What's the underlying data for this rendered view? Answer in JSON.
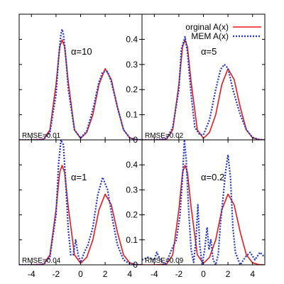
{
  "legend": {
    "position": "top-right",
    "entries": [
      "orginal A(x)",
      "MEM A(x)"
    ]
  },
  "colors": {
    "original": "#e8191d",
    "mem": "#1f35c8",
    "frame": "#000000"
  },
  "axes": {
    "x": {
      "lim": [
        -5,
        5
      ],
      "ticks": [
        -4,
        -2,
        0,
        2,
        4
      ]
    },
    "y": {
      "lim": [
        0,
        0.5
      ],
      "ticks": [
        0,
        0.1,
        0.2,
        0.3,
        0.4
      ]
    }
  },
  "chart_data": [
    {
      "type": "line",
      "panel": "top-left",
      "alpha_label": "α=10",
      "rmse_label": "RMSE=0.01",
      "xlim": [
        -5,
        5
      ],
      "ylim": [
        0,
        0.5
      ],
      "grid": false,
      "series": [
        {
          "name": "orginal A(x)",
          "style": "solid",
          "x": [
            -5,
            -4,
            -3,
            -2.5,
            -2,
            -1.7,
            -1.5,
            -1.3,
            -1,
            -0.5,
            0,
            0.5,
            1,
            1.5,
            2,
            2.5,
            3,
            3.5,
            4,
            4.5,
            5
          ],
          "y": [
            0,
            0,
            0.003,
            0.04,
            0.22,
            0.37,
            0.398,
            0.37,
            0.23,
            0.04,
            0.006,
            0.03,
            0.1,
            0.22,
            0.283,
            0.24,
            0.13,
            0.04,
            0.008,
            0.001,
            0
          ]
        },
        {
          "name": "MEM A(x)",
          "style": "dotted",
          "x": [
            -5,
            -4,
            -3,
            -2.5,
            -2,
            -1.8,
            -1.6,
            -1.5,
            -1.4,
            -1.2,
            -1,
            -0.5,
            0,
            0.5,
            1,
            1.5,
            1.8,
            2.2,
            2.5,
            3,
            3.5,
            4,
            4.5,
            5
          ],
          "y": [
            0,
            0,
            0.002,
            0.03,
            0.18,
            0.32,
            0.42,
            0.44,
            0.42,
            0.33,
            0.2,
            0.04,
            0.007,
            0.035,
            0.12,
            0.23,
            0.27,
            0.272,
            0.23,
            0.13,
            0.04,
            0.008,
            0.001,
            0
          ]
        }
      ]
    },
    {
      "type": "line",
      "panel": "top-right",
      "alpha_label": "α=5",
      "rmse_label": "RMSE=0.02",
      "xlim": [
        -5,
        5
      ],
      "ylim": [
        0,
        0.5
      ],
      "grid": false,
      "series": [
        {
          "name": "orginal A(x)",
          "style": "solid",
          "x": [
            -5,
            -4,
            -3,
            -2.5,
            -2,
            -1.7,
            -1.5,
            -1.3,
            -1,
            -0.5,
            0,
            0.5,
            1,
            1.5,
            2,
            2.5,
            3,
            3.5,
            4,
            4.5,
            5
          ],
          "y": [
            0,
            0,
            0.003,
            0.04,
            0.22,
            0.37,
            0.398,
            0.37,
            0.23,
            0.04,
            0.006,
            0.03,
            0.1,
            0.22,
            0.283,
            0.24,
            0.13,
            0.04,
            0.008,
            0.001,
            0
          ]
        },
        {
          "name": "MEM A(x)",
          "style": "dotted",
          "x": [
            -5,
            -4,
            -3,
            -2.5,
            -2,
            -1.8,
            -1.5,
            -1.3,
            -1,
            -0.7,
            -0.3,
            0,
            0.5,
            1,
            1.4,
            1.7,
            2,
            2.4,
            3,
            3.5,
            4,
            4.5,
            5
          ],
          "y": [
            0,
            0,
            0.005,
            0.05,
            0.2,
            0.36,
            0.41,
            0.35,
            0.18,
            0.05,
            0.02,
            0.02,
            0.08,
            0.2,
            0.28,
            0.3,
            0.285,
            0.2,
            0.1,
            0.04,
            0.01,
            0.002,
            0
          ]
        }
      ]
    },
    {
      "type": "line",
      "panel": "bottom-left",
      "alpha_label": "α=1",
      "rmse_label": "RMSE=0.04",
      "xlim": [
        -5,
        5
      ],
      "ylim": [
        0,
        0.5
      ],
      "grid": false,
      "series": [
        {
          "name": "orginal A(x)",
          "style": "solid",
          "x": [
            -5,
            -4,
            -3,
            -2.5,
            -2,
            -1.7,
            -1.5,
            -1.3,
            -1,
            -0.5,
            0,
            0.5,
            1,
            1.5,
            2,
            2.5,
            3,
            3.5,
            4,
            4.5,
            5
          ],
          "y": [
            0,
            0,
            0.003,
            0.04,
            0.22,
            0.37,
            0.398,
            0.37,
            0.23,
            0.04,
            0.006,
            0.03,
            0.1,
            0.22,
            0.283,
            0.24,
            0.13,
            0.04,
            0.008,
            0.001,
            0
          ]
        },
        {
          "name": "MEM A(x)",
          "style": "dotted",
          "x": [
            -5,
            -4,
            -3,
            -2.5,
            -2,
            -1.8,
            -1.6,
            -1.4,
            -1.2,
            -1,
            -0.8,
            -0.6,
            -0.4,
            -0.2,
            0,
            0.3,
            0.6,
            1,
            1.4,
            1.8,
            2.2,
            2.6,
            3,
            3.5,
            4,
            4.5,
            5
          ],
          "y": [
            0,
            0,
            0.002,
            0.03,
            0.2,
            0.4,
            0.5,
            0.48,
            0.32,
            0.14,
            0.04,
            0.04,
            0.1,
            0.04,
            0.01,
            0.05,
            0.08,
            0.15,
            0.28,
            0.35,
            0.3,
            0.18,
            0.08,
            0.02,
            0.004,
            0.001,
            0
          ]
        }
      ]
    },
    {
      "type": "line",
      "panel": "bottom-right",
      "alpha_label": "α=0.2",
      "rmse_label": "RMSE=0.09",
      "xlim": [
        -5,
        5
      ],
      "ylim": [
        0,
        0.5
      ],
      "grid": false,
      "series": [
        {
          "name": "orginal A(x)",
          "style": "solid",
          "x": [
            -5,
            -4,
            -3,
            -2.5,
            -2,
            -1.7,
            -1.5,
            -1.3,
            -1,
            -0.5,
            0,
            0.5,
            1,
            1.5,
            2,
            2.5,
            3,
            3.5,
            4,
            4.5,
            5
          ],
          "y": [
            0,
            0,
            0.003,
            0.04,
            0.22,
            0.37,
            0.398,
            0.37,
            0.23,
            0.04,
            0.006,
            0.03,
            0.1,
            0.22,
            0.283,
            0.24,
            0.13,
            0.04,
            0.008,
            0.001,
            0
          ]
        },
        {
          "name": "MEM A(x)",
          "style": "dotted",
          "x": [
            -5,
            -4.5,
            -4,
            -3.8,
            -3.5,
            -3.2,
            -3,
            -2.6,
            -2.2,
            -1.9,
            -1.7,
            -1.55,
            -1.4,
            -1.2,
            -1,
            -0.8,
            -0.6,
            -0.45,
            -0.3,
            -0.1,
            0.1,
            0.3,
            0.45,
            0.6,
            0.8,
            1,
            1.2,
            1.4,
            1.6,
            1.8,
            2,
            2.2,
            2.4,
            2.6,
            3,
            3.4,
            3.8,
            4.2,
            4.6,
            5
          ],
          "y": [
            0.02,
            0.03,
            0.02,
            0.05,
            0.02,
            0,
            0.01,
            0.06,
            0.1,
            0.2,
            0.35,
            0.5,
            0.42,
            0.22,
            0.06,
            0.01,
            0.1,
            0.24,
            0.08,
            0,
            0.06,
            0.15,
            0.06,
            0.1,
            0.02,
            0,
            0.04,
            0.17,
            0.27,
            0.37,
            0.44,
            0.35,
            0.15,
            0.05,
            0,
            0.03,
            0.05,
            0.02,
            0.05,
            0.03
          ]
        }
      ]
    }
  ]
}
